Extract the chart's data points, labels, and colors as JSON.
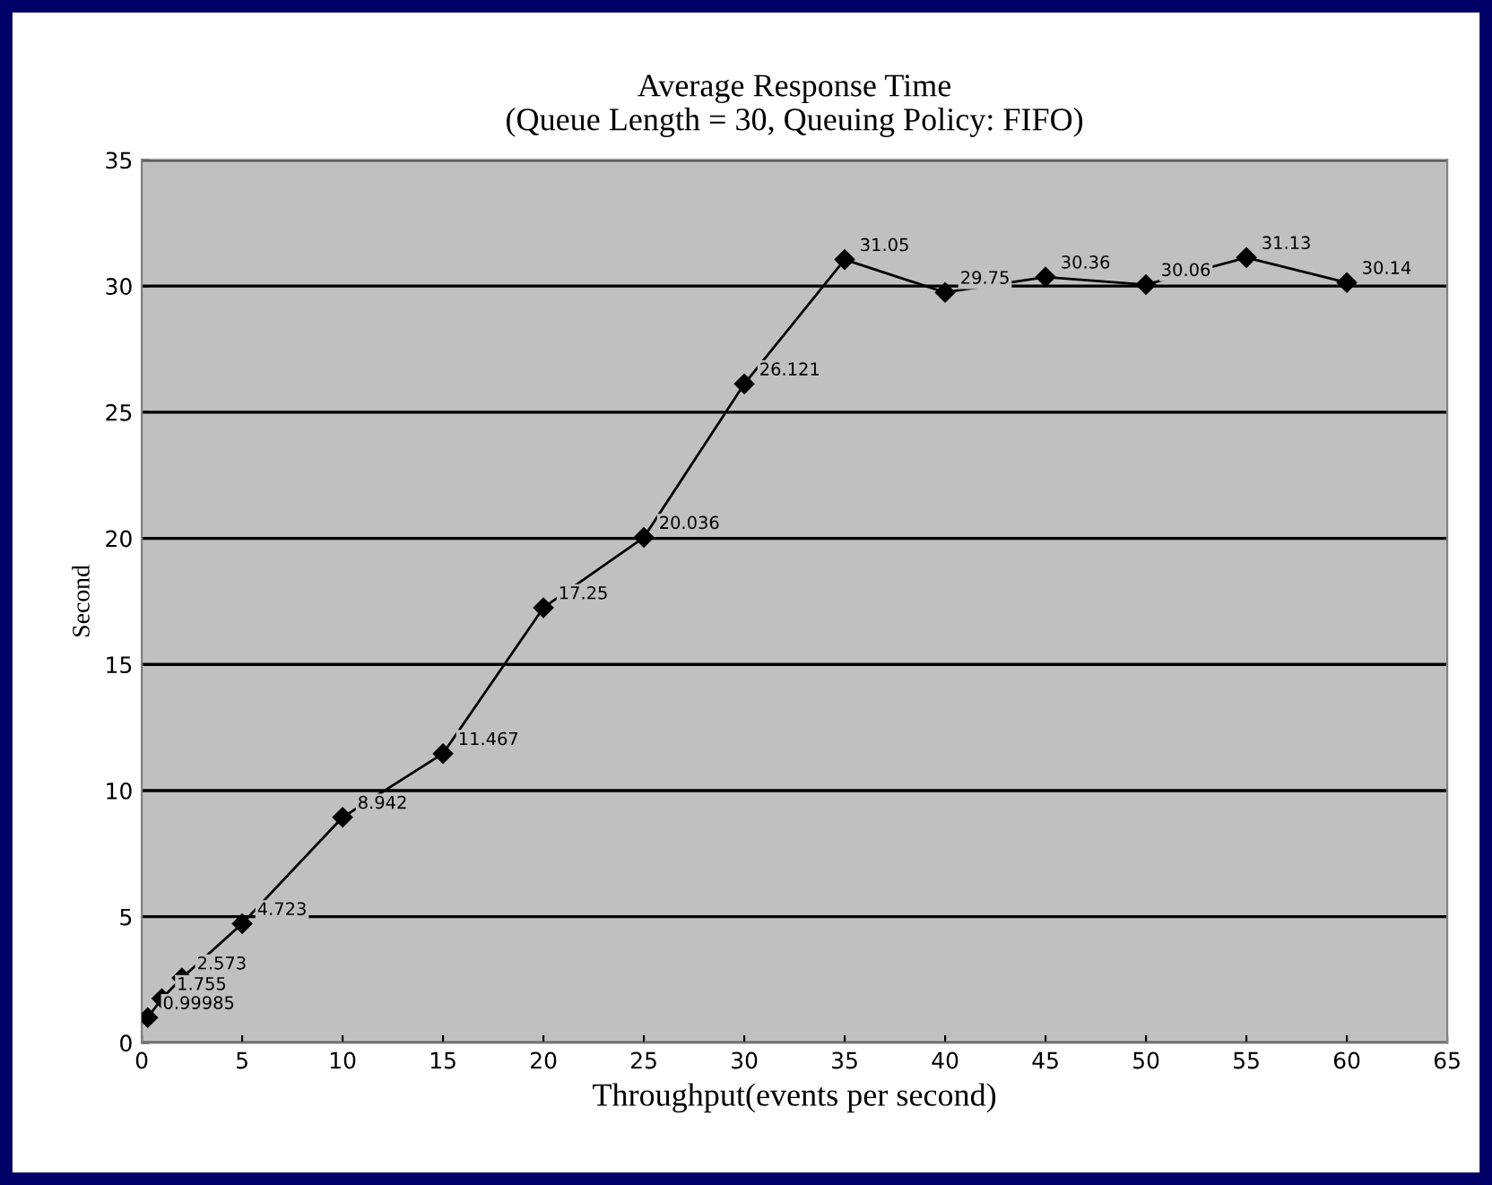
{
  "chart_data": {
    "type": "line",
    "title": "Average Response Time\n(Queue Length = 30, Queuing Policy: FIFO)",
    "xlabel": "Throughput(events per second)",
    "ylabel": "Second",
    "x": [
      0.3,
      1,
      2,
      5,
      10,
      15,
      20,
      25,
      30,
      35,
      40,
      45,
      50,
      55,
      60
    ],
    "series": [
      {
        "color": "#000000",
        "values": [
          0.99985,
          1.755,
          2.573,
          4.723,
          8.942,
          11.467,
          17.25,
          20.036,
          26.121,
          31.05,
          29.75,
          30.36,
          30.06,
          31.13,
          30.14
        ],
        "value_labels": [
          "0.99985",
          "1.755",
          "2.573",
          "4.723",
          "8.942",
          "11.467",
          "17.25",
          "20.036",
          "26.121",
          "31.05",
          "29.75",
          "30.36",
          "30.06",
          "31.13",
          "30.14"
        ]
      }
    ],
    "xlim": [
      0,
      65
    ],
    "xticks": [
      0,
      5,
      10,
      15,
      20,
      25,
      30,
      35,
      40,
      45,
      50,
      55,
      60,
      65
    ],
    "ylim": [
      0,
      35
    ],
    "yticks": [
      0,
      5,
      10,
      15,
      20,
      25,
      30,
      35
    ],
    "grid": "y",
    "marker": "diamond",
    "line_style": "solid"
  }
}
